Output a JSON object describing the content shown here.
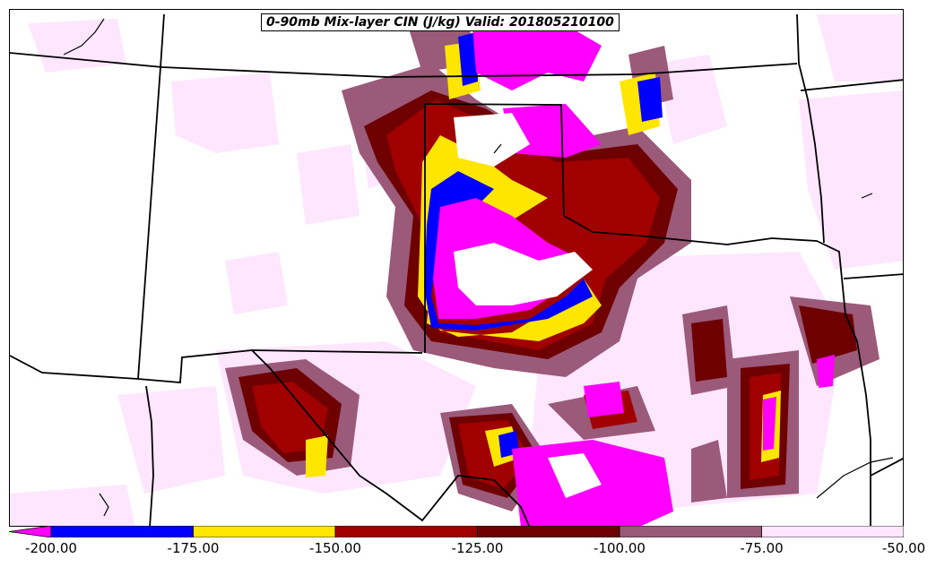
{
  "title": "0-90mb Mix-layer CIN (J/kg) Valid: 201805210100",
  "colorbar": {
    "ticks": [
      "-200.00",
      "-175.00",
      "-150.00",
      "-125.00",
      "-100.00",
      "-75.00",
      "-50.00"
    ],
    "colors": [
      "#0000ff",
      "#ffe600",
      "#a00000",
      "#6e0000",
      "#9c5a7a",
      "#ffe6ff"
    ],
    "extend_color": "#ff00ff"
  }
}
